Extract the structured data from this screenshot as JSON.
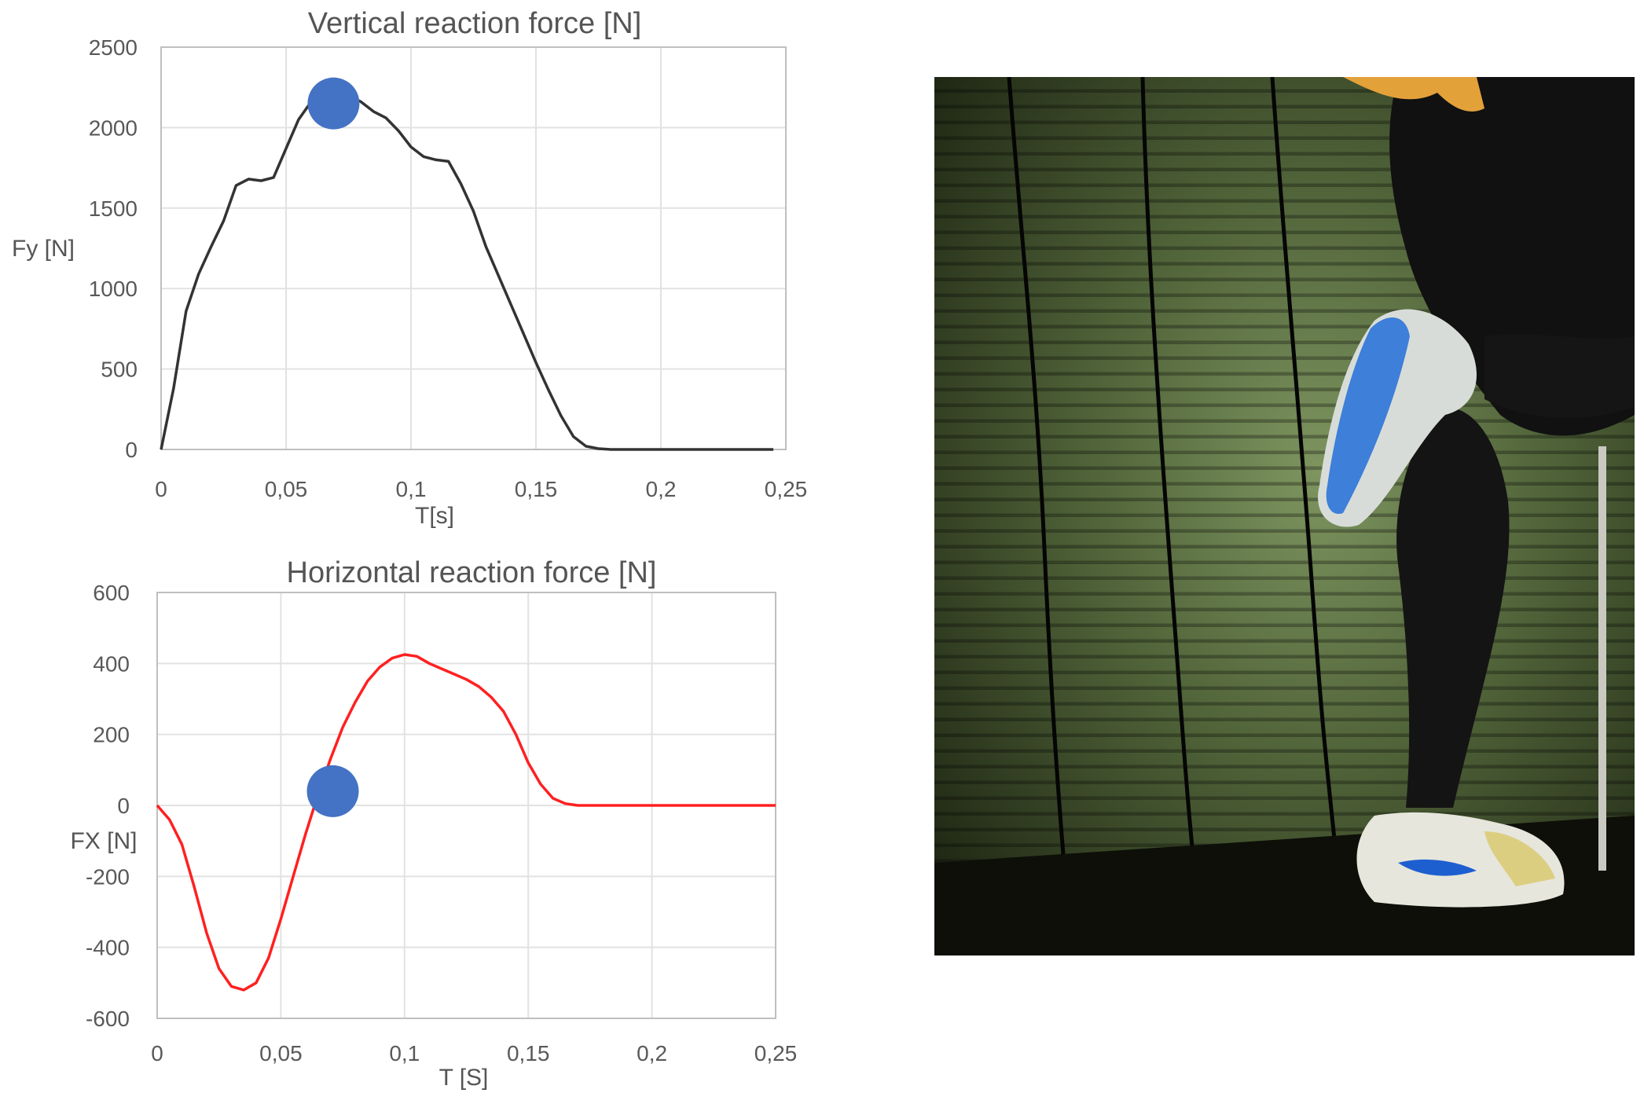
{
  "chart_data": [
    {
      "type": "line",
      "title": "Vertical reaction force [N]",
      "xlabel": "T[s]",
      "ylabel": "Fy [N]",
      "xlim": [
        0,
        0.25
      ],
      "ylim": [
        0,
        2500
      ],
      "xticks": [
        0,
        0.05,
        0.1,
        0.15,
        0.2,
        0.25
      ],
      "xtick_labels": [
        "0",
        "0,05",
        "0,1",
        "0,15",
        "0,2",
        "0,25"
      ],
      "yticks": [
        0,
        500,
        1000,
        1500,
        2000,
        2500
      ],
      "ytick_labels": [
        "0",
        "500",
        "1000",
        "1500",
        "2000",
        "2500"
      ],
      "grid": true,
      "series": [
        {
          "color": "#333333",
          "x": [
            0,
            0.005,
            0.01,
            0.015,
            0.02,
            0.025,
            0.03,
            0.035,
            0.04,
            0.045,
            0.05,
            0.055,
            0.06,
            0.065,
            0.07,
            0.075,
            0.08,
            0.085,
            0.09,
            0.095,
            0.1,
            0.105,
            0.11,
            0.115,
            0.12,
            0.125,
            0.13,
            0.135,
            0.14,
            0.145,
            0.15,
            0.155,
            0.16,
            0.165,
            0.17,
            0.175,
            0.18,
            0.185,
            0.19,
            0.195,
            0.2,
            0.21,
            0.22,
            0.23,
            0.245
          ],
          "y": [
            0,
            380,
            860,
            1090,
            1260,
            1420,
            1640,
            1680,
            1670,
            1690,
            1870,
            2050,
            2160,
            2200,
            2210,
            2200,
            2160,
            2100,
            2060,
            1980,
            1880,
            1820,
            1800,
            1790,
            1650,
            1480,
            1260,
            1080,
            900,
            720,
            540,
            370,
            210,
            80,
            20,
            5,
            0,
            0,
            0,
            0,
            0,
            0,
            0,
            0,
            0
          ]
        }
      ],
      "marker": {
        "x": 0.069,
        "y": 2150,
        "color": "#4472c4"
      }
    },
    {
      "type": "line",
      "title": "Horizontal reaction force [N]",
      "xlabel": "T [S]",
      "ylabel": "FX [N]",
      "xlim": [
        0,
        0.25
      ],
      "ylim": [
        -600,
        600
      ],
      "xticks": [
        0,
        0.05,
        0.1,
        0.15,
        0.2,
        0.25
      ],
      "xtick_labels": [
        "0",
        "0,05",
        "0,1",
        "0,15",
        "0,2",
        "0,25"
      ],
      "yticks": [
        -600,
        -400,
        -200,
        0,
        200,
        400,
        600
      ],
      "ytick_labels": [
        "-600",
        "-400",
        "-200",
        "0",
        "200",
        "400",
        "600"
      ],
      "grid": true,
      "series": [
        {
          "color": "#ff2020",
          "x": [
            0,
            0.005,
            0.01,
            0.015,
            0.02,
            0.025,
            0.03,
            0.035,
            0.04,
            0.045,
            0.05,
            0.055,
            0.06,
            0.065,
            0.07,
            0.075,
            0.08,
            0.085,
            0.09,
            0.095,
            0.1,
            0.105,
            0.11,
            0.115,
            0.12,
            0.125,
            0.13,
            0.135,
            0.14,
            0.145,
            0.15,
            0.155,
            0.16,
            0.165,
            0.17,
            0.175,
            0.18,
            0.185,
            0.19,
            0.2,
            0.21,
            0.22,
            0.23,
            0.25
          ],
          "y": [
            0,
            -40,
            -110,
            -230,
            -360,
            -460,
            -510,
            -520,
            -500,
            -430,
            -320,
            -200,
            -80,
            30,
            130,
            220,
            290,
            350,
            390,
            415,
            425,
            420,
            400,
            385,
            370,
            355,
            335,
            305,
            265,
            200,
            120,
            60,
            20,
            5,
            0,
            0,
            0,
            0,
            0,
            0,
            0,
            0,
            0,
            0
          ]
        }
      ],
      "marker": {
        "x": 0.071,
        "y": 40,
        "color": "#4472c4"
      }
    }
  ]
}
